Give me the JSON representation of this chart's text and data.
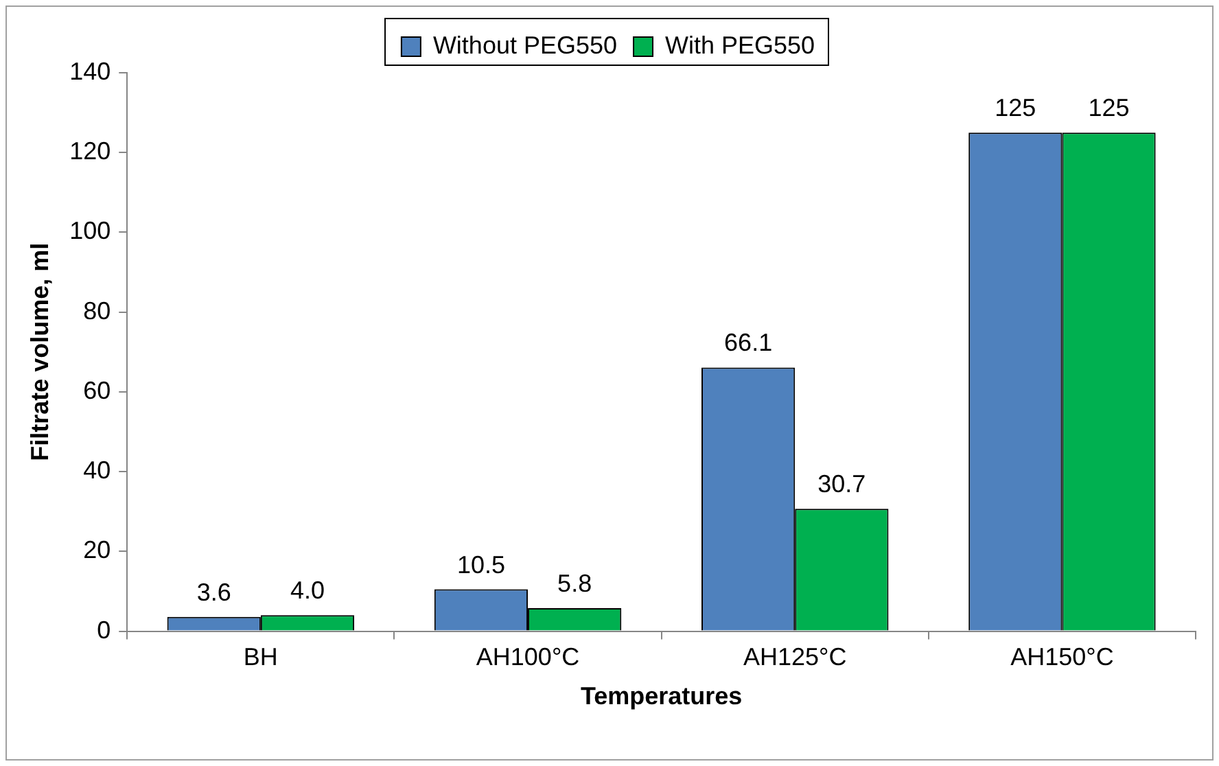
{
  "chart_data": {
    "type": "bar",
    "xlabel": "Temperatures",
    "ylabel": "Filtrate volume, ml",
    "categories": [
      "BH",
      "AH100°C",
      "AH125°C",
      "AH150°C"
    ],
    "series": [
      {
        "name": "Without PEG550",
        "color": "#4f81bd",
        "values": [
          3.6,
          10.5,
          66.1,
          125
        ],
        "value_labels": [
          "3.6",
          "10.5",
          "66.1",
          "125"
        ]
      },
      {
        "name": "With PEG550",
        "color": "#00b050",
        "values": [
          4.0,
          5.8,
          30.7,
          125
        ],
        "value_labels": [
          "4.0",
          "5.8",
          "30.7",
          "125"
        ]
      }
    ],
    "ylim": [
      0,
      140
    ],
    "yticks": [
      0,
      20,
      40,
      60,
      80,
      100,
      120,
      140
    ],
    "grid": false,
    "legend": "top"
  }
}
